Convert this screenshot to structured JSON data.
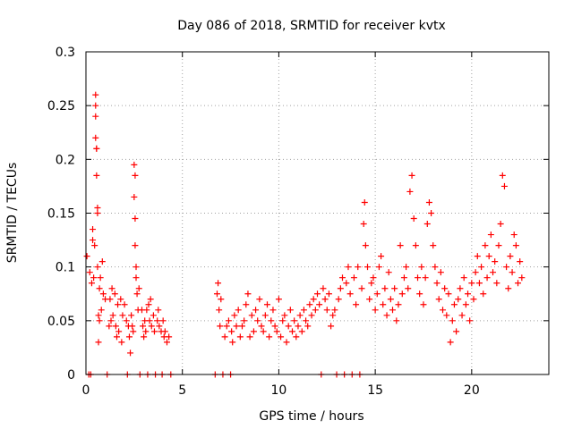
{
  "chart_data": {
    "type": "scatter",
    "title": "Day 086 of 2018, SRMTID for receiver kvtx",
    "xlabel": "GPS time / hours",
    "ylabel": "SRMTID / TECUs",
    "xlim": [
      0,
      24
    ],
    "ylim": [
      0,
      0.3
    ],
    "x_ticks": [
      0,
      5,
      10,
      15,
      20
    ],
    "x_tick_labels": [
      "0",
      "5",
      "10",
      "15",
      "20"
    ],
    "y_ticks": [
      0,
      0.05,
      0.1,
      0.15,
      0.2,
      0.25,
      0.3
    ],
    "y_tick_labels": [
      "0",
      "0.05",
      "0.1",
      "0.15",
      "0.2",
      "0.25",
      "0.3"
    ],
    "grid": true,
    "marker": "+",
    "marker_color": "#ff0000",
    "series": [
      {
        "name": "SRMTID",
        "points": [
          [
            0.05,
            0.11
          ],
          [
            0.15,
            0.0
          ],
          [
            0.2,
            0.095
          ],
          [
            0.25,
            0.0
          ],
          [
            0.3,
            0.085
          ],
          [
            0.35,
            0.135
          ],
          [
            0.35,
            0.125
          ],
          [
            0.4,
            0.09
          ],
          [
            0.45,
            0.12
          ],
          [
            0.5,
            0.26
          ],
          [
            0.5,
            0.22
          ],
          [
            0.5,
            0.24
          ],
          [
            0.5,
            0.25
          ],
          [
            0.55,
            0.185
          ],
          [
            0.55,
            0.21
          ],
          [
            0.55,
            0.21
          ],
          [
            0.6,
            0.15
          ],
          [
            0.6,
            0.1
          ],
          [
            0.6,
            0.155
          ],
          [
            0.65,
            0.055
          ],
          [
            0.65,
            0.03
          ],
          [
            0.7,
            0.08
          ],
          [
            0.7,
            0.05
          ],
          [
            0.75,
            0.09
          ],
          [
            0.8,
            0.06
          ],
          [
            0.85,
            0.105
          ],
          [
            0.9,
            0.075
          ],
          [
            1.0,
            0.07
          ],
          [
            1.1,
            0.0
          ],
          [
            1.2,
            0.045
          ],
          [
            1.25,
            0.07
          ],
          [
            1.3,
            0.05
          ],
          [
            1.35,
            0.08
          ],
          [
            1.4,
            0.055
          ],
          [
            1.5,
            0.075
          ],
          [
            1.55,
            0.045
          ],
          [
            1.6,
            0.035
          ],
          [
            1.65,
            0.065
          ],
          [
            1.7,
            0.04
          ],
          [
            1.8,
            0.07
          ],
          [
            1.85,
            0.03
          ],
          [
            1.9,
            0.055
          ],
          [
            2.0,
            0.065
          ],
          [
            2.1,
            0.05
          ],
          [
            2.15,
            0.0
          ],
          [
            2.2,
            0.045
          ],
          [
            2.25,
            0.035
          ],
          [
            2.3,
            0.02
          ],
          [
            2.35,
            0.055
          ],
          [
            2.4,
            0.045
          ],
          [
            2.45,
            0.04
          ],
          [
            2.5,
            0.195
          ],
          [
            2.55,
            0.185
          ],
          [
            2.5,
            0.165
          ],
          [
            2.55,
            0.145
          ],
          [
            2.55,
            0.12
          ],
          [
            2.6,
            0.1
          ],
          [
            2.6,
            0.09
          ],
          [
            2.65,
            0.075
          ],
          [
            2.7,
            0.06
          ],
          [
            2.75,
            0.08
          ],
          [
            2.8,
            0.0
          ],
          [
            2.9,
            0.06
          ],
          [
            2.95,
            0.045
          ],
          [
            3.0,
            0.035
          ],
          [
            3.05,
            0.05
          ],
          [
            3.1,
            0.04
          ],
          [
            3.15,
            0.06
          ],
          [
            3.2,
            0.0
          ],
          [
            3.25,
            0.065
          ],
          [
            3.3,
            0.05
          ],
          [
            3.35,
            0.07
          ],
          [
            3.4,
            0.045
          ],
          [
            3.5,
            0.055
          ],
          [
            3.55,
            0.04
          ],
          [
            3.6,
            0.0
          ],
          [
            3.7,
            0.05
          ],
          [
            3.75,
            0.06
          ],
          [
            3.8,
            0.045
          ],
          [
            3.9,
            0.04
          ],
          [
            3.95,
            0.0
          ],
          [
            4.0,
            0.05
          ],
          [
            4.05,
            0.035
          ],
          [
            4.1,
            0.04
          ],
          [
            4.2,
            0.03
          ],
          [
            4.3,
            0.035
          ],
          [
            4.4,
            0.0
          ],
          [
            6.7,
            0.0
          ],
          [
            6.8,
            0.075
          ],
          [
            6.85,
            0.085
          ],
          [
            6.9,
            0.06
          ],
          [
            6.95,
            0.045
          ],
          [
            7.0,
            0.07
          ],
          [
            7.1,
            0.0
          ],
          [
            7.2,
            0.035
          ],
          [
            7.3,
            0.045
          ],
          [
            7.4,
            0.05
          ],
          [
            7.5,
            0.0
          ],
          [
            7.55,
            0.04
          ],
          [
            7.6,
            0.03
          ],
          [
            7.7,
            0.055
          ],
          [
            7.8,
            0.045
          ],
          [
            7.9,
            0.06
          ],
          [
            8.0,
            0.035
          ],
          [
            8.1,
            0.045
          ],
          [
            8.2,
            0.05
          ],
          [
            8.3,
            0.065
          ],
          [
            8.4,
            0.075
          ],
          [
            8.5,
            0.035
          ],
          [
            8.6,
            0.055
          ],
          [
            8.7,
            0.04
          ],
          [
            8.8,
            0.06
          ],
          [
            8.9,
            0.05
          ],
          [
            9.0,
            0.07
          ],
          [
            9.1,
            0.045
          ],
          [
            9.2,
            0.04
          ],
          [
            9.3,
            0.055
          ],
          [
            9.4,
            0.065
          ],
          [
            9.5,
            0.035
          ],
          [
            9.6,
            0.05
          ],
          [
            9.7,
            0.06
          ],
          [
            9.8,
            0.045
          ],
          [
            9.9,
            0.04
          ],
          [
            10.0,
            0.07
          ],
          [
            10.1,
            0.035
          ],
          [
            10.2,
            0.05
          ],
          [
            10.3,
            0.055
          ],
          [
            10.4,
            0.03
          ],
          [
            10.5,
            0.045
          ],
          [
            10.6,
            0.06
          ],
          [
            10.7,
            0.04
          ],
          [
            10.8,
            0.05
          ],
          [
            10.9,
            0.035
          ],
          [
            11.0,
            0.045
          ],
          [
            11.1,
            0.055
          ],
          [
            11.2,
            0.04
          ],
          [
            11.3,
            0.06
          ],
          [
            11.4,
            0.05
          ],
          [
            11.5,
            0.045
          ],
          [
            11.6,
            0.065
          ],
          [
            11.7,
            0.055
          ],
          [
            11.8,
            0.07
          ],
          [
            11.9,
            0.06
          ],
          [
            12.0,
            0.075
          ],
          [
            12.1,
            0.065
          ],
          [
            12.2,
            0.0
          ],
          [
            12.3,
            0.08
          ],
          [
            12.4,
            0.07
          ],
          [
            12.5,
            0.06
          ],
          [
            12.6,
            0.075
          ],
          [
            12.7,
            0.045
          ],
          [
            12.8,
            0.055
          ],
          [
            12.9,
            0.06
          ],
          [
            13.0,
            0.0
          ],
          [
            13.1,
            0.07
          ],
          [
            13.2,
            0.08
          ],
          [
            13.3,
            0.09
          ],
          [
            13.4,
            0.0
          ],
          [
            13.5,
            0.085
          ],
          [
            13.6,
            0.1
          ],
          [
            13.7,
            0.075
          ],
          [
            13.8,
            0.0
          ],
          [
            13.9,
            0.09
          ],
          [
            14.0,
            0.065
          ],
          [
            14.1,
            0.1
          ],
          [
            14.2,
            0.0
          ],
          [
            14.3,
            0.08
          ],
          [
            14.4,
            0.14
          ],
          [
            14.45,
            0.16
          ],
          [
            14.5,
            0.12
          ],
          [
            14.6,
            0.1
          ],
          [
            14.7,
            0.07
          ],
          [
            14.8,
            0.085
          ],
          [
            14.9,
            0.09
          ],
          [
            15.0,
            0.06
          ],
          [
            15.1,
            0.075
          ],
          [
            15.2,
            0.1
          ],
          [
            15.3,
            0.11
          ],
          [
            15.4,
            0.065
          ],
          [
            15.5,
            0.08
          ],
          [
            15.6,
            0.055
          ],
          [
            15.7,
            0.095
          ],
          [
            15.8,
            0.07
          ],
          [
            15.9,
            0.06
          ],
          [
            16.0,
            0.08
          ],
          [
            16.1,
            0.05
          ],
          [
            16.2,
            0.065
          ],
          [
            16.3,
            0.12
          ],
          [
            16.4,
            0.075
          ],
          [
            16.5,
            0.09
          ],
          [
            16.6,
            0.1
          ],
          [
            16.7,
            0.08
          ],
          [
            16.8,
            0.17
          ],
          [
            16.9,
            0.185
          ],
          [
            17.0,
            0.145
          ],
          [
            17.1,
            0.12
          ],
          [
            17.2,
            0.09
          ],
          [
            17.3,
            0.075
          ],
          [
            17.4,
            0.1
          ],
          [
            17.5,
            0.065
          ],
          [
            17.6,
            0.09
          ],
          [
            17.7,
            0.14
          ],
          [
            17.8,
            0.16
          ],
          [
            17.9,
            0.15
          ],
          [
            18.0,
            0.12
          ],
          [
            18.1,
            0.1
          ],
          [
            18.2,
            0.085
          ],
          [
            18.3,
            0.07
          ],
          [
            18.4,
            0.095
          ],
          [
            18.5,
            0.06
          ],
          [
            18.6,
            0.08
          ],
          [
            18.7,
            0.055
          ],
          [
            18.8,
            0.075
          ],
          [
            18.9,
            0.03
          ],
          [
            19.0,
            0.05
          ],
          [
            19.1,
            0.065
          ],
          [
            19.2,
            0.04
          ],
          [
            19.3,
            0.07
          ],
          [
            19.4,
            0.08
          ],
          [
            19.5,
            0.055
          ],
          [
            19.6,
            0.09
          ],
          [
            19.7,
            0.065
          ],
          [
            19.8,
            0.075
          ],
          [
            19.9,
            0.05
          ],
          [
            20.0,
            0.085
          ],
          [
            20.1,
            0.07
          ],
          [
            20.2,
            0.095
          ],
          [
            20.3,
            0.11
          ],
          [
            20.4,
            0.085
          ],
          [
            20.5,
            0.1
          ],
          [
            20.6,
            0.075
          ],
          [
            20.7,
            0.12
          ],
          [
            20.8,
            0.09
          ],
          [
            20.9,
            0.11
          ],
          [
            21.0,
            0.13
          ],
          [
            21.1,
            0.095
          ],
          [
            21.2,
            0.105
          ],
          [
            21.3,
            0.085
          ],
          [
            21.4,
            0.12
          ],
          [
            21.5,
            0.14
          ],
          [
            21.6,
            0.185
          ],
          [
            21.7,
            0.175
          ],
          [
            21.8,
            0.1
          ],
          [
            21.9,
            0.08
          ],
          [
            22.0,
            0.11
          ],
          [
            22.1,
            0.095
          ],
          [
            22.2,
            0.13
          ],
          [
            22.3,
            0.12
          ],
          [
            22.4,
            0.085
          ],
          [
            22.5,
            0.105
          ],
          [
            22.6,
            0.09
          ]
        ]
      }
    ]
  }
}
